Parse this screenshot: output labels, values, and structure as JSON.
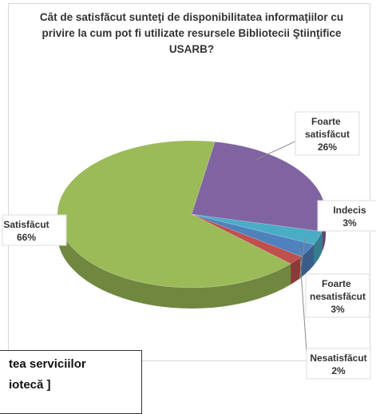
{
  "chart_data": {
    "type": "pie3d",
    "title": "Cât de satisfăcut sunteţi de disponibilitatea informaţiilor cu privire la cum pot fi utilizate resursele Bibliotecii Ştiinţifice USARB?",
    "categories": [
      "Foarte satisfăcut",
      "Indecis",
      "Foarte nesatisfăcut",
      "Nesatisfăcut",
      "Satisfăcut"
    ],
    "values": [
      26,
      3,
      3,
      2,
      66
    ],
    "value_labels": [
      "26%",
      "3%",
      "3%",
      "2%",
      "66%"
    ],
    "colors": [
      "#8064a2",
      "#4bacc6",
      "#4f81bd",
      "#c0504d",
      "#9bbb59"
    ]
  },
  "overlay": {
    "lines": [
      "tea serviciilor",
      "iotecă ]"
    ]
  }
}
